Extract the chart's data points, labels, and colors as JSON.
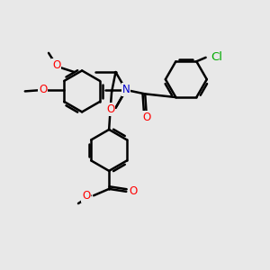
{
  "bg_color": "#e8e8e8",
  "bond_color": "#000000",
  "bond_width": 1.8,
  "atom_colors": {
    "N": "#0000cc",
    "O": "#ff0000",
    "Cl": "#00aa00",
    "C": "#000000"
  },
  "font_size": 8.5,
  "figsize": [
    3.0,
    3.0
  ],
  "dpi": 100
}
